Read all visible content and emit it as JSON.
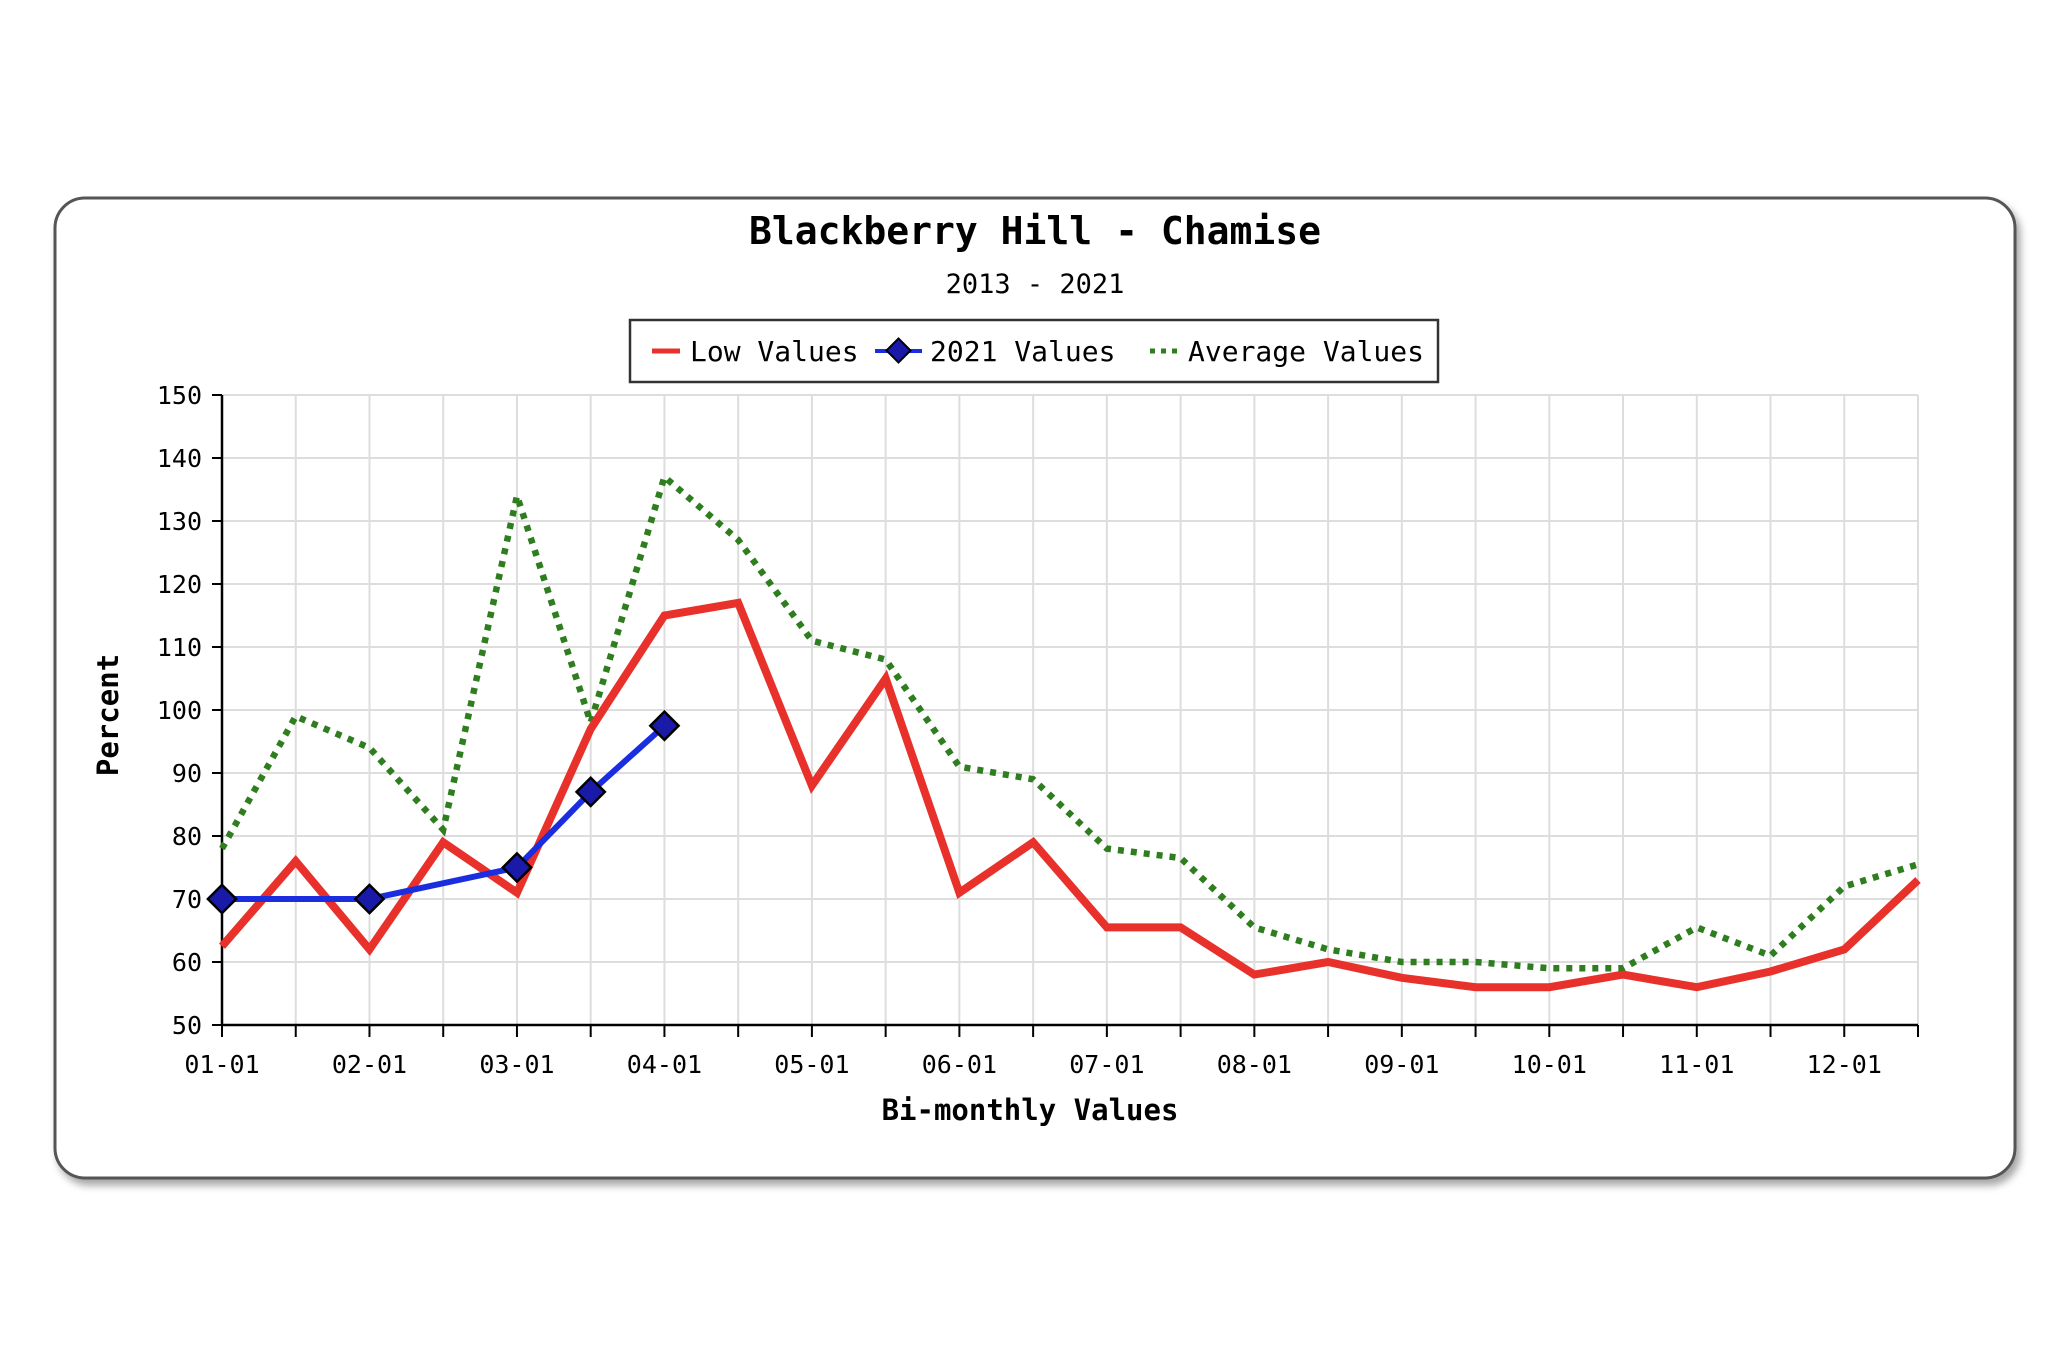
{
  "chart_data": {
    "type": "line",
    "title": "Blackberry Hill - Chamise",
    "subtitle": "2013 - 2021",
    "xlabel": "Bi-monthly Values",
    "ylabel": "Percent",
    "ylim": [
      50,
      150
    ],
    "y_ticks": [
      50,
      60,
      70,
      80,
      90,
      100,
      110,
      120,
      130,
      140,
      150
    ],
    "x_ticks": [
      "01-01",
      "02-01",
      "03-01",
      "04-01",
      "05-01",
      "06-01",
      "07-01",
      "08-01",
      "09-01",
      "10-01",
      "11-01",
      "12-01"
    ],
    "grid": true,
    "legend_position": "top-center",
    "series": [
      {
        "name": "Low Values",
        "color": "#e8312a",
        "style": "solid",
        "values": [
          62.5,
          76,
          62,
          79,
          71,
          97,
          115,
          117,
          88,
          105,
          71,
          79,
          65.5,
          65.5,
          58,
          60,
          57.5,
          56,
          56,
          58,
          56,
          58.5,
          62,
          73
        ]
      },
      {
        "name": "2021 Values",
        "color": "#1a2ee0",
        "style": "solid-markers",
        "values": [
          70,
          null,
          70,
          null,
          75,
          87,
          97.5
        ]
      },
      {
        "name": "Average Values",
        "color": "#2e7d1e",
        "style": "dotted",
        "values": [
          78,
          99,
          94,
          81,
          134,
          98,
          137,
          127,
          111,
          108,
          91,
          89,
          78,
          76.5,
          65.5,
          62,
          60,
          60,
          59,
          59,
          65.5,
          61,
          72,
          75.5
        ]
      }
    ]
  }
}
